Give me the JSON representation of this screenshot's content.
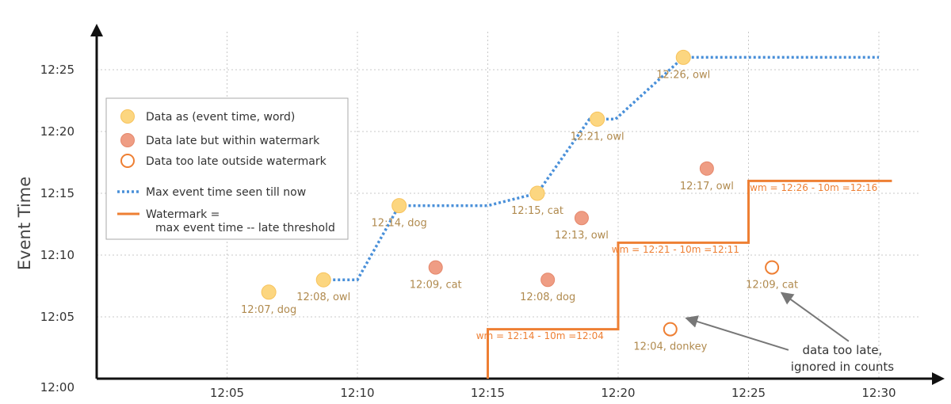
{
  "chart_data": {
    "type": "scatter",
    "xlabel": "",
    "ylabel": "Event Time",
    "xlim": [
      "12:00",
      "12:31"
    ],
    "ylim": [
      "12:00",
      "12:28"
    ],
    "x_ticks": [
      "12:05",
      "12:10",
      "12:15",
      "12:20",
      "12:25",
      "12:30"
    ],
    "y_ticks": [
      "12:00",
      "12:05",
      "12:10",
      "12:15",
      "12:20",
      "12:25"
    ],
    "grid": true,
    "legend_position": "top-left",
    "colors": {
      "on_time": "#fcd680",
      "late": "#ef9d84",
      "too_late": "#ee7f33",
      "max_line": "#4a90d9",
      "watermark": "#ee7f33"
    },
    "legend": [
      {
        "kind": "on_time",
        "label": "Data as (event time, word)"
      },
      {
        "kind": "late",
        "label": "Data late but within watermark"
      },
      {
        "kind": "too_late",
        "label": "Data too late outside watermark"
      },
      {
        "kind": "max_line",
        "label": "Max event time seen till now"
      },
      {
        "kind": "watermark",
        "label": "Watermark =",
        "label2": "max event time -- late threshold"
      }
    ],
    "series": [
      {
        "kind": "on_time",
        "points": [
          {
            "x": "12:06.6",
            "y": "12:07",
            "label": "12:07, dog"
          },
          {
            "x": "12:08.7",
            "y": "12:08",
            "label": "12:08, owl"
          },
          {
            "x": "12:11.6",
            "y": "12:14",
            "label": "12:14, dog"
          },
          {
            "x": "12:16.9",
            "y": "12:15",
            "label": "12:15, cat"
          },
          {
            "x": "12:19.2",
            "y": "12:21",
            "label": "12:21, owl"
          },
          {
            "x": "12:22.5",
            "y": "12:26",
            "label": "12:26, owl"
          }
        ]
      },
      {
        "kind": "late",
        "points": [
          {
            "x": "12:13.0",
            "y": "12:09",
            "label": "12:09, cat"
          },
          {
            "x": "12:17.3",
            "y": "12:08",
            "label": "12:08, dog"
          },
          {
            "x": "12:18.6",
            "y": "12:13",
            "label": "12:13, owl"
          },
          {
            "x": "12:23.4",
            "y": "12:17",
            "label": "12:17, owl"
          }
        ]
      },
      {
        "kind": "too_late",
        "points": [
          {
            "x": "12:22.0",
            "y": "12:04",
            "label": "12:04, donkey"
          },
          {
            "x": "12:25.9",
            "y": "12:09",
            "label": "12:09, cat"
          }
        ]
      }
    ],
    "max_event_line": [
      [
        "12:08.7",
        "12:08"
      ],
      [
        "12:10.0",
        "12:08"
      ],
      [
        "12:11.6",
        "12:14"
      ],
      [
        "12:15.0",
        "12:14"
      ],
      [
        "12:16.9",
        "12:15"
      ],
      [
        "12:18.9",
        "12:21"
      ],
      [
        "12:19.9",
        "12:21"
      ],
      [
        "12:22.5",
        "12:26"
      ],
      [
        "12:30.0",
        "12:26"
      ]
    ],
    "watermark_line": [
      [
        "12:15",
        "12:00"
      ],
      [
        "12:15",
        "12:04"
      ],
      [
        "12:20",
        "12:04"
      ],
      [
        "12:20",
        "12:11"
      ],
      [
        "12:25",
        "12:11"
      ],
      [
        "12:25",
        "12:16"
      ],
      [
        "12:30.5",
        "12:16"
      ]
    ],
    "watermark_labels": [
      {
        "x": "12:17.0",
        "y": "12:03.2",
        "text": "wm = 12:14 - 10m =12:04"
      },
      {
        "x": "12:22.2",
        "y": "12:10.2",
        "text": "wm = 12:21 - 10m =12:11"
      },
      {
        "x": "12:27.5",
        "y": "12:15.2",
        "text": "wm = 12:26 - 10m =12:16"
      }
    ],
    "annotation": {
      "lines": [
        "data too late,",
        "ignored in counts"
      ],
      "x": "12:28.6",
      "y": "12:02"
    }
  }
}
